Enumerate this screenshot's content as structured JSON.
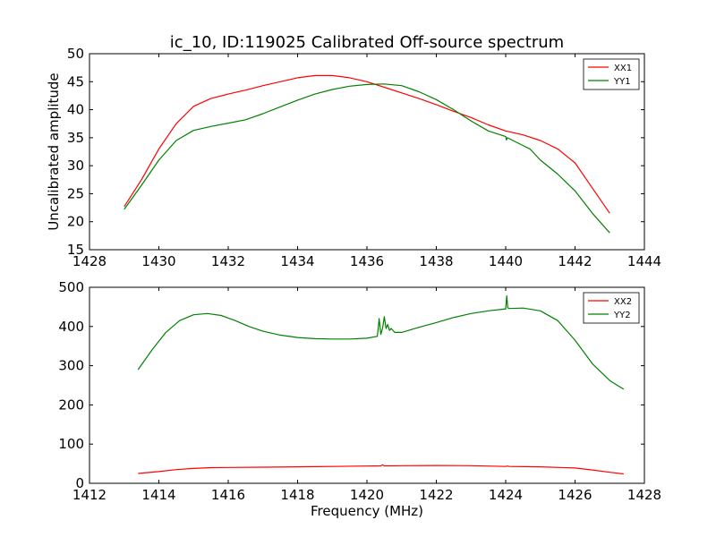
{
  "title": "ic_10, ID:119025 Calibrated Off-source spectrum",
  "chart_data": [
    {
      "type": "line",
      "title": "ic_10, ID:119025 Calibrated Off-source spectrum",
      "xlabel": "",
      "ylabel": "Uncalibrated amplitude",
      "xlim": [
        1428,
        1444
      ],
      "ylim": [
        15,
        50
      ],
      "xticks": [
        1428,
        1430,
        1432,
        1434,
        1436,
        1438,
        1440,
        1442,
        1444
      ],
      "yticks": [
        15,
        20,
        25,
        30,
        35,
        40,
        45,
        50
      ],
      "legend": "top-right",
      "grid": false,
      "series": [
        {
          "name": "XX1",
          "color": "#ff0000",
          "x": [
            1429.0,
            1429.5,
            1430.0,
            1430.5,
            1431.0,
            1431.5,
            1432.0,
            1432.5,
            1433.0,
            1433.5,
            1434.0,
            1434.5,
            1435.0,
            1435.5,
            1436.0,
            1436.5,
            1437.0,
            1437.5,
            1438.0,
            1438.5,
            1439.0,
            1439.5,
            1440.0,
            1440.5,
            1441.0,
            1441.5,
            1442.0,
            1442.5,
            1443.0
          ],
          "y": [
            22.7,
            27.5,
            33.0,
            37.5,
            40.6,
            42.0,
            42.8,
            43.5,
            44.3,
            45.0,
            45.7,
            46.1,
            46.1,
            45.7,
            45.0,
            44.0,
            43.0,
            42.0,
            40.9,
            39.7,
            38.6,
            37.3,
            36.2,
            35.5,
            34.5,
            33.0,
            30.5,
            26.0,
            21.5
          ]
        },
        {
          "name": "YY1",
          "color": "#008000",
          "x": [
            1429.0,
            1429.5,
            1430.0,
            1430.5,
            1431.0,
            1431.5,
            1432.0,
            1432.5,
            1433.0,
            1433.5,
            1434.0,
            1434.5,
            1435.0,
            1435.5,
            1436.0,
            1436.5,
            1437.0,
            1437.5,
            1438.0,
            1438.5,
            1439.0,
            1439.5,
            1440.0,
            1440.02,
            1440.05,
            1440.5,
            1440.7,
            1441.0,
            1441.5,
            1442.0,
            1442.5,
            1443.0
          ],
          "y": [
            22.2,
            26.5,
            31.0,
            34.5,
            36.3,
            37.0,
            37.6,
            38.2,
            39.3,
            40.5,
            41.7,
            42.8,
            43.6,
            44.2,
            44.5,
            44.6,
            44.3,
            43.2,
            41.8,
            40.0,
            38.0,
            36.2,
            35.2,
            34.6,
            35.0,
            33.6,
            33.0,
            31.0,
            28.5,
            25.5,
            21.5,
            18.0
          ]
        }
      ]
    },
    {
      "type": "line",
      "title": "",
      "xlabel": "Frequency (MHz)",
      "ylabel": "",
      "xlim": [
        1412,
        1428
      ],
      "ylim": [
        0,
        500
      ],
      "xticks": [
        1412,
        1414,
        1416,
        1418,
        1420,
        1422,
        1424,
        1426,
        1428
      ],
      "yticks": [
        0,
        100,
        200,
        300,
        400,
        500
      ],
      "legend": "top-right",
      "grid": false,
      "series": [
        {
          "name": "XX2",
          "color": "#ff0000",
          "x": [
            1413.4,
            1414.0,
            1414.5,
            1415.0,
            1415.5,
            1416.0,
            1417.0,
            1418.0,
            1419.0,
            1420.0,
            1420.4,
            1420.45,
            1420.5,
            1421.0,
            1422.0,
            1423.0,
            1424.0,
            1424.05,
            1424.1,
            1425.0,
            1426.0,
            1426.5,
            1427.0,
            1427.4
          ],
          "y": [
            25,
            30,
            35,
            38,
            40,
            40.5,
            41,
            42,
            43,
            44,
            44.5,
            47,
            44.5,
            45,
            45.5,
            45,
            43,
            44,
            43,
            42,
            39,
            34,
            28,
            24
          ]
        },
        {
          "name": "YY2",
          "color": "#008000",
          "x": [
            1413.4,
            1413.8,
            1414.2,
            1414.6,
            1415.0,
            1415.4,
            1415.8,
            1416.2,
            1416.6,
            1417.0,
            1417.5,
            1418.0,
            1418.5,
            1419.0,
            1419.5,
            1420.0,
            1420.3,
            1420.35,
            1420.4,
            1420.45,
            1420.5,
            1420.55,
            1420.6,
            1420.65,
            1420.7,
            1420.8,
            1421.0,
            1421.5,
            1422.0,
            1422.5,
            1423.0,
            1423.5,
            1424.0,
            1424.03,
            1424.06,
            1424.1,
            1424.5,
            1425.0,
            1425.5,
            1426.0,
            1426.5,
            1427.0,
            1427.4
          ],
          "y": [
            290,
            340,
            385,
            415,
            430,
            433,
            428,
            415,
            400,
            388,
            378,
            372,
            369,
            368,
            368,
            370,
            375,
            420,
            380,
            395,
            425,
            395,
            405,
            390,
            395,
            385,
            385,
            398,
            410,
            423,
            433,
            440,
            445,
            478,
            448,
            446,
            447,
            440,
            415,
            365,
            305,
            262,
            240
          ]
        }
      ]
    }
  ]
}
